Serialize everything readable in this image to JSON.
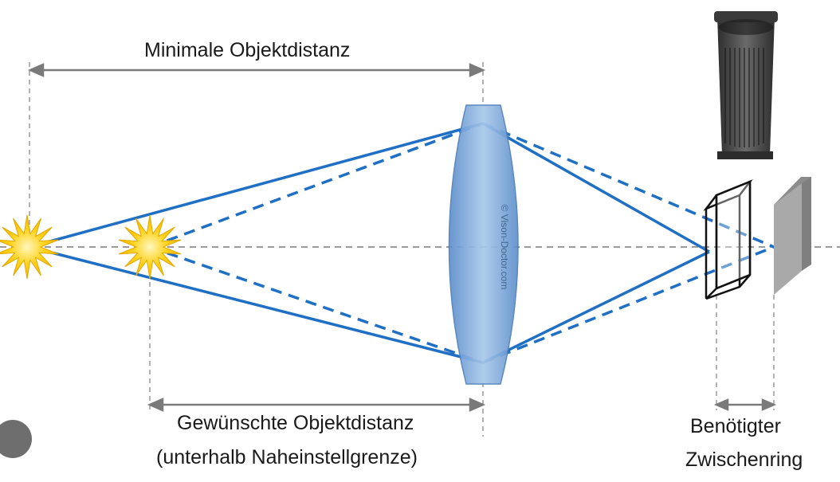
{
  "labels": {
    "min_distance": "Minimale Objektdistanz",
    "desired_distance_line1": "Gewünschte Objektdistanz",
    "desired_distance_line2": "(unterhalb Naheinstellgrenze)",
    "required_line1": "Benötigter",
    "required_line2": "Zwischenring",
    "watermark": "© Vison-Doctor.com"
  },
  "colors": {
    "ray": "#1f6fc4",
    "guide": "#9a9a9a",
    "star": "#f7c400",
    "lens_fill": "#7fa9d8",
    "sensor": "#a9a9a9"
  }
}
